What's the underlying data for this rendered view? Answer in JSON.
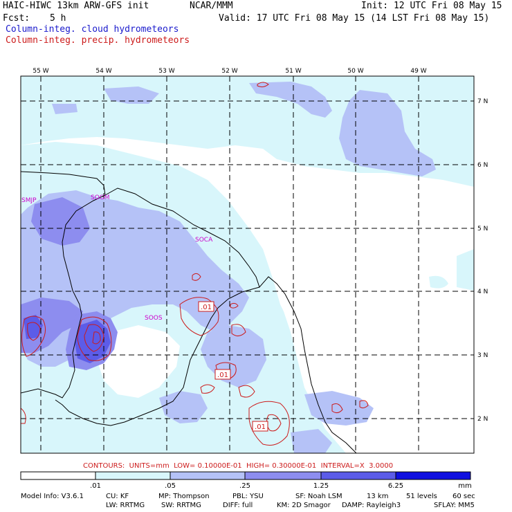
{
  "header": {
    "model": "HAIC-HIWC 13km ARW-GFS init",
    "org": "NCAR/MMM",
    "init": "Init: 12 UTC Fri 08 May 15",
    "fcst_label": "Fcst:",
    "fcst_value": "5 h",
    "valid": "Valid: 17 UTC Fri 08 May 15 (14 LST Fri 08 May 15)",
    "field_cloud": "Column-integ. cloud hydrometeors",
    "field_precip": "Column-integ. precip. hydrometeors"
  },
  "colors": {
    "frame": "#000000",
    "shade_low": "#d8f6fb",
    "shade_mid1": "#b5c2f7",
    "shade_mid2": "#8d8def",
    "shade_high": "#5c5ce8",
    "shade_max": "#1010e0",
    "contour": "#cc1a1a",
    "station": "#cc00cc",
    "title_blue": "#1a1acc",
    "title_red": "#cc1a1a"
  },
  "longitudes": [
    "55 W",
    "54 W",
    "53 W",
    "52 W",
    "51 W",
    "50 W",
    "49 W"
  ],
  "latitudes": [
    "7 N",
    "6 N",
    "5 N",
    "4 N",
    "3 N",
    "2 N"
  ],
  "stations": [
    "SMJP",
    "SOGM",
    "SOCA",
    "SOOS"
  ],
  "contour_labels": [
    ".01",
    ".01",
    ".01"
  ],
  "contours_info": "CONTOURS:  UNITS=mm  LOW= 0.10000E-01  HIGH= 0.30000E-01  INTERVAL=X  3.0000",
  "colorbar": {
    "ticks": [
      ".01",
      ".05",
      ".25",
      "1.25",
      "6.25"
    ],
    "units": "mm"
  },
  "model_info": {
    "line1": {
      "info": "Model Info: V3.6.1",
      "cu": "CU: KF",
      "mp": "MP: Thompson",
      "pbl": "PBL: YSU",
      "sf": "SF: Noah LSM",
      "res": "13 km",
      "levels": "51 levels",
      "dt": "60 sec"
    },
    "line2": {
      "lw": "LW: RRTMG",
      "sw": "SW: RRTMG",
      "diff": "DIFF: full",
      "km": "KM: 2D Smagor",
      "damp": "DAMP: Rayleigh3",
      "sflay": "SFLAY: MM5"
    }
  }
}
